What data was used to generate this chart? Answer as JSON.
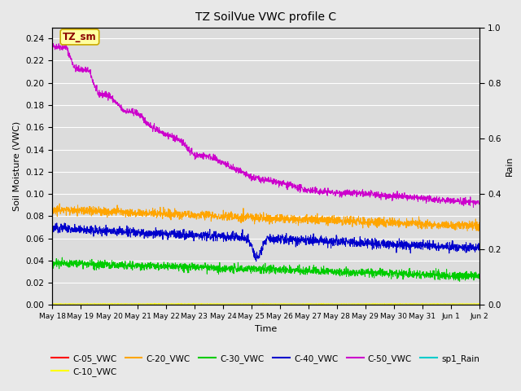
{
  "title": "TZ SoilVue VWC profile C",
  "xlabel": "Time",
  "ylabel_left": "Soil Moisture (VWC)",
  "ylabel_right": "Rain",
  "ylim_left": [
    0.0,
    0.25
  ],
  "ylim_right": [
    0.0,
    1.0
  ],
  "num_points": 2000,
  "annotation_text": "TZ_sm",
  "annotation_color": "#8B0000",
  "annotation_bg": "#FFFFA0",
  "annotation_border": "#CCAA00",
  "fig_bg_color": "#E8E8E8",
  "plot_bg_color": "#DCDCDC",
  "series_colors": {
    "C-05_VWC": "#FF0000",
    "C-10_VWC": "#FFFF00",
    "C-20_VWC": "#FFA500",
    "C-30_VWC": "#00CC00",
    "C-40_VWC": "#0000CC",
    "C-50_VWC": "#CC00CC",
    "sp1_Rain": "#00CCCC"
  },
  "xtick_labels": [
    "May 18",
    "May 19",
    "May 20",
    "May 21",
    "May 22",
    "May 23",
    "May 24",
    "May 25",
    "May 26",
    "May 27",
    "May 28",
    "May 29",
    "May 30",
    "May 31",
    "Jun 1",
    "Jun 2"
  ],
  "yticks_left": [
    0.0,
    0.02,
    0.04,
    0.06,
    0.08,
    0.1,
    0.12,
    0.14,
    0.16,
    0.18,
    0.2,
    0.22,
    0.24
  ],
  "yticks_right": [
    0.0,
    0.2,
    0.4,
    0.6,
    0.8,
    1.0
  ],
  "grid_color": "#FFFFFF",
  "line_width": 0.7
}
